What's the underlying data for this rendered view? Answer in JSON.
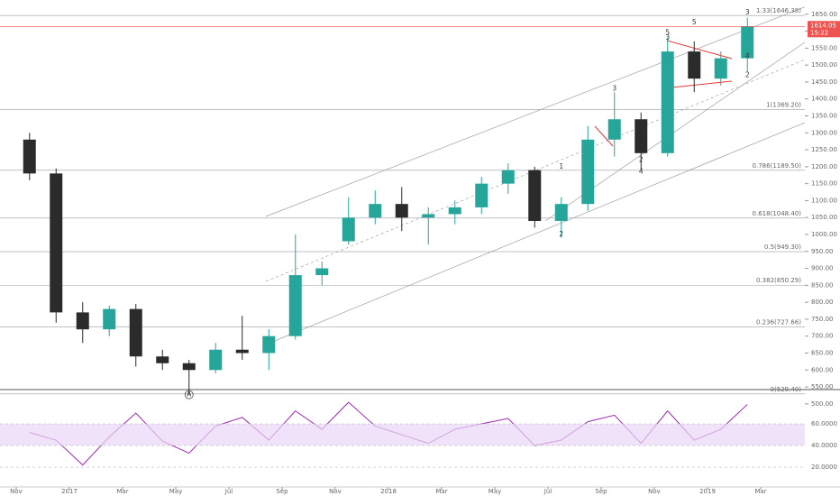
{
  "chart_data": [
    {
      "type": "candlestick",
      "x": [
        "2016-11",
        "2016-12",
        "2017-01",
        "2017-02",
        "2017-03",
        "2017-04",
        "2017-05",
        "2017-06",
        "2017-07",
        "2017-08",
        "2017-09",
        "2017-10",
        "2017-11",
        "2017-12",
        "2018-01",
        "2018-02",
        "2018-03",
        "2018-04",
        "2018-05",
        "2018-06",
        "2018-07",
        "2018-08",
        "2018-09",
        "2018-10",
        "2018-11",
        "2018-12",
        "2019-01",
        "2019-02"
      ],
      "open": [
        1280,
        1180,
        770,
        720,
        780,
        640,
        620,
        600,
        660,
        650,
        700,
        880,
        980,
        1050,
        1090,
        1050,
        1060,
        1080,
        1150,
        1190,
        1040,
        1090,
        1280,
        1340,
        1240,
        1540,
        1460,
        1520
      ],
      "high": [
        1300,
        1195,
        800,
        790,
        795,
        660,
        630,
        680,
        760,
        720,
        1000,
        920,
        1110,
        1130,
        1140,
        1080,
        1100,
        1170,
        1210,
        1200,
        1110,
        1320,
        1420,
        1360,
        1580,
        1570,
        1540,
        1640
      ],
      "low": [
        1160,
        740,
        680,
        700,
        610,
        600,
        530,
        590,
        630,
        600,
        690,
        850,
        970,
        1030,
        1010,
        970,
        1030,
        1060,
        1120,
        1020,
        990,
        1070,
        1230,
        1190,
        1230,
        1420,
        1440,
        1480
      ],
      "close": [
        1180,
        770,
        720,
        780,
        640,
        620,
        600,
        660,
        650,
        700,
        880,
        900,
        1050,
        1090,
        1050,
        1060,
        1080,
        1150,
        1190,
        1040,
        1090,
        1280,
        1340,
        1240,
        1540,
        1460,
        1520,
        1614.05
      ],
      "up_color": "#26a69a",
      "down_color": "#2b2b2b",
      "xlim": [
        "2016-10",
        "2019-05"
      ],
      "ylim": [
        481,
        1692
      ],
      "yticks": [
        {
          "value": 500,
          "label": "500.00"
        },
        {
          "value": 550,
          "label": "550.00"
        },
        {
          "value": 600,
          "label": "600.00"
        },
        {
          "value": 650,
          "label": "650.00"
        },
        {
          "value": 700,
          "label": "700.00"
        },
        {
          "value": 750,
          "label": "750.00"
        },
        {
          "value": 800,
          "label": "800.00"
        },
        {
          "value": 850,
          "label": "850.00"
        },
        {
          "value": 900,
          "label": "900.00"
        },
        {
          "value": 950,
          "label": "950.00"
        },
        {
          "value": 1000,
          "label": "1000.00"
        },
        {
          "value": 1050,
          "label": "1050.00"
        },
        {
          "value": 1100,
          "label": "1100.00"
        },
        {
          "value": 1150,
          "label": "1150.00"
        },
        {
          "value": 1200,
          "label": "1200.00"
        },
        {
          "value": 1250,
          "label": "1250.00"
        },
        {
          "value": 1300,
          "label": "1300.00"
        },
        {
          "value": 1350,
          "label": "1350.00"
        },
        {
          "value": 1400,
          "label": "1400.00"
        },
        {
          "value": 1450,
          "label": "1450.00"
        },
        {
          "value": 1500,
          "label": "1500.00"
        },
        {
          "value": 1550,
          "label": "1550.00"
        },
        {
          "value": 1600,
          "label": "1600.00"
        },
        {
          "value": 1650,
          "label": "1650.00"
        }
      ],
      "levels": [
        {
          "value": 529.4,
          "label": "0(529.40)"
        },
        {
          "value": 727.66,
          "label": "0.236(727.66)"
        },
        {
          "value": 850.29,
          "label": "0.382(850.29)"
        },
        {
          "value": 949.3,
          "label": "0.5(949.30)"
        },
        {
          "value": 1048.4,
          "label": "0.618(1048.40)"
        },
        {
          "value": 1189.5,
          "label": "0.786(1189.50)"
        },
        {
          "value": 1369.2,
          "label": "1(1369.20)"
        },
        {
          "value": 1646.38,
          "label": "1.33(1646.38)"
        }
      ],
      "level_color": "#9a9aa8",
      "last_price": {
        "value": 1614.05,
        "label": "1614.05"
      },
      "countdown": "15:22",
      "last_color": "#ef5350",
      "annotations": [
        {
          "text": "A",
          "x": "2017-05",
          "y": 527,
          "circled": true
        },
        {
          "text": "1",
          "x": "2018-07",
          "y": 1200,
          "circled": false
        },
        {
          "text": "2",
          "x": "2018-07",
          "y": 1000,
          "circled": false
        },
        {
          "text": "3",
          "x": "2018-09",
          "y": 1430,
          "circled": false
        },
        {
          "text": "4",
          "x": "2018-10",
          "y": 1185,
          "circled": false
        },
        {
          "text": "2",
          "x": "2018-10",
          "y": 1220,
          "circled": false
        },
        {
          "text": "3",
          "x": "2018-11",
          "y": 1580,
          "circled": false
        },
        {
          "text": "5",
          "x": "2018-11",
          "y": 1595,
          "circled": false
        },
        {
          "text": "5",
          "x": "2018-12",
          "y": 1625,
          "circled": false
        },
        {
          "text": "4",
          "x": "2019-02",
          "y": 1525,
          "circled": false
        },
        {
          "text": "2",
          "x": "2019-02",
          "y": 1470,
          "circled": false
        },
        {
          "text": "3",
          "x": "2019-02",
          "y": 1655,
          "circled": false
        }
      ]
    },
    {
      "type": "line",
      "x": [
        "2016-11",
        "2016-12",
        "2017-01",
        "2017-02",
        "2017-03",
        "2017-04",
        "2017-05",
        "2017-06",
        "2017-07",
        "2017-08",
        "2017-09",
        "2017-10",
        "2017-11",
        "2017-12",
        "2018-01",
        "2018-02",
        "2018-03",
        "2018-04",
        "2018-05",
        "2018-06",
        "2018-07",
        "2018-08",
        "2018-09",
        "2018-10",
        "2018-11",
        "2018-12",
        "2019-01",
        "2019-02"
      ],
      "values": [
        52,
        45,
        22,
        48,
        70,
        44,
        33,
        58,
        66,
        45,
        72,
        55,
        80,
        58,
        50,
        42,
        55,
        60,
        65,
        40,
        45,
        62,
        68,
        42,
        72,
        45,
        55,
        78
      ],
      "color": "#9c27b0",
      "band": [
        40,
        60
      ],
      "band_color": "#e9d5f7",
      "xlim": [
        "2016-10",
        "2019-05"
      ],
      "ylim": [
        1.7,
        91.7
      ],
      "yticks": [
        {
          "value": 20,
          "label": "20.0000"
        },
        {
          "value": 40,
          "label": "40.0000"
        },
        {
          "value": 60,
          "label": "60.0000"
        }
      ],
      "xticks": [
        {
          "value": "2016-11",
          "label": "Nov"
        },
        {
          "value": "2017-01",
          "label": "2017"
        },
        {
          "value": "2017-03",
          "label": "Mar"
        },
        {
          "value": "2017-05",
          "label": "May"
        },
        {
          "value": "2017-07",
          "label": "Jul"
        },
        {
          "value": "2017-09",
          "label": "Sep"
        },
        {
          "value": "2017-11",
          "label": "Nov"
        },
        {
          "value": "2018-01",
          "label": "2018"
        },
        {
          "value": "2018-03",
          "label": "Mar"
        },
        {
          "value": "2018-05",
          "label": "May"
        },
        {
          "value": "2018-07",
          "label": "Jul"
        },
        {
          "value": "2018-09",
          "label": "Sep"
        },
        {
          "value": "2018-11",
          "label": "Nov"
        },
        {
          "value": "2019-01",
          "label": "2019"
        },
        {
          "value": "2019-03",
          "label": "Mar"
        }
      ]
    }
  ]
}
